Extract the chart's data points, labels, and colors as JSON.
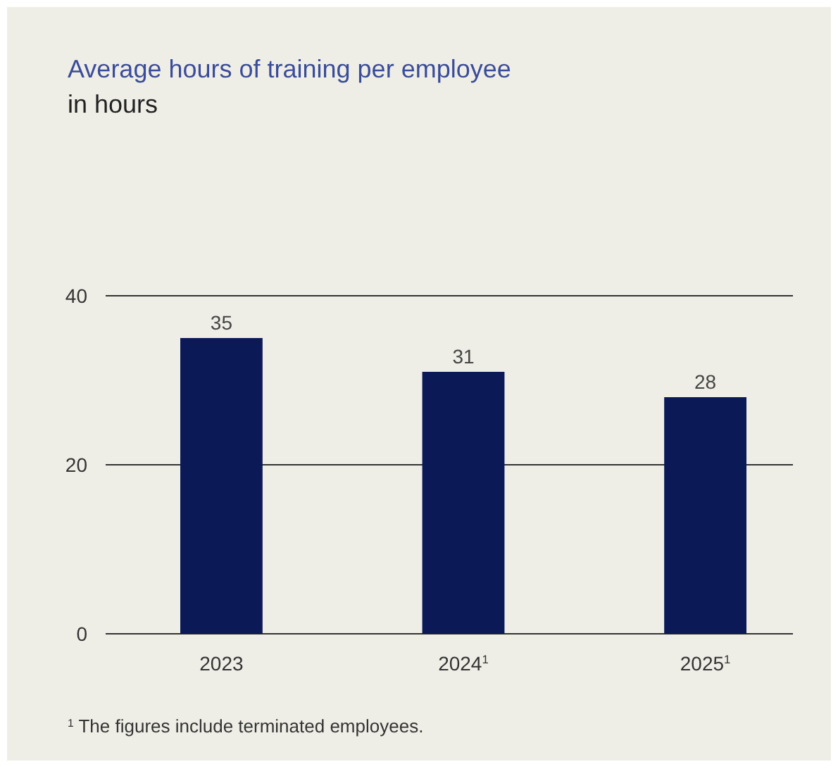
{
  "chart_data": {
    "type": "bar",
    "title": "Average hours of training per employee",
    "subtitle": "in hours",
    "categories": [
      "2023",
      "2024$^{1}$",
      "2025$^{1}$"
    ],
    "values": [
      35,
      31,
      28
    ],
    "color": "#0c1957",
    "ylim": [
      0,
      40
    ],
    "yticks": [
      0,
      20,
      40
    ],
    "grid": "y",
    "data_labels": true,
    "annotations": [
      "$^{1}$ The figures include terminated employees."
    ]
  }
}
